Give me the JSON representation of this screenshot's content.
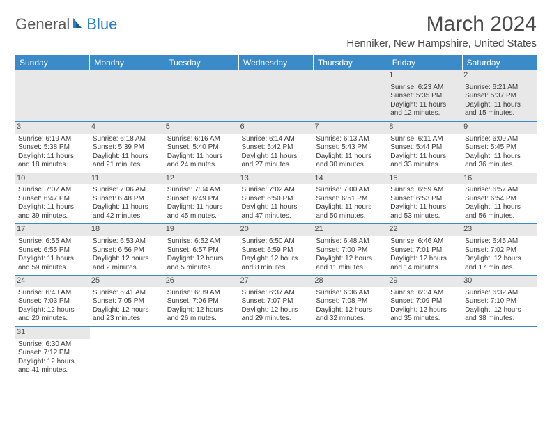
{
  "logo": {
    "part1": "General",
    "part2": "Blue"
  },
  "title": "March 2024",
  "location": "Henniker, New Hampshire, United States",
  "colors": {
    "header_bg": "#3b8bc9",
    "header_text": "#ffffff",
    "daynum_bg": "#e8e8e8",
    "text": "#3a3a3a",
    "border": "#3b8bc9"
  },
  "day_headers": [
    "Sunday",
    "Monday",
    "Tuesday",
    "Wednesday",
    "Thursday",
    "Friday",
    "Saturday"
  ],
  "weeks": [
    [
      {
        "n": "",
        "lines": []
      },
      {
        "n": "",
        "lines": []
      },
      {
        "n": "",
        "lines": []
      },
      {
        "n": "",
        "lines": []
      },
      {
        "n": "",
        "lines": []
      },
      {
        "n": "1",
        "lines": [
          "Sunrise: 6:23 AM",
          "Sunset: 5:35 PM",
          "Daylight: 11 hours",
          "and 12 minutes."
        ]
      },
      {
        "n": "2",
        "lines": [
          "Sunrise: 6:21 AM",
          "Sunset: 5:37 PM",
          "Daylight: 11 hours",
          "and 15 minutes."
        ]
      }
    ],
    [
      {
        "n": "3",
        "lines": [
          "Sunrise: 6:19 AM",
          "Sunset: 5:38 PM",
          "Daylight: 11 hours",
          "and 18 minutes."
        ]
      },
      {
        "n": "4",
        "lines": [
          "Sunrise: 6:18 AM",
          "Sunset: 5:39 PM",
          "Daylight: 11 hours",
          "and 21 minutes."
        ]
      },
      {
        "n": "5",
        "lines": [
          "Sunrise: 6:16 AM",
          "Sunset: 5:40 PM",
          "Daylight: 11 hours",
          "and 24 minutes."
        ]
      },
      {
        "n": "6",
        "lines": [
          "Sunrise: 6:14 AM",
          "Sunset: 5:42 PM",
          "Daylight: 11 hours",
          "and 27 minutes."
        ]
      },
      {
        "n": "7",
        "lines": [
          "Sunrise: 6:13 AM",
          "Sunset: 5:43 PM",
          "Daylight: 11 hours",
          "and 30 minutes."
        ]
      },
      {
        "n": "8",
        "lines": [
          "Sunrise: 6:11 AM",
          "Sunset: 5:44 PM",
          "Daylight: 11 hours",
          "and 33 minutes."
        ]
      },
      {
        "n": "9",
        "lines": [
          "Sunrise: 6:09 AM",
          "Sunset: 5:45 PM",
          "Daylight: 11 hours",
          "and 36 minutes."
        ]
      }
    ],
    [
      {
        "n": "10",
        "lines": [
          "Sunrise: 7:07 AM",
          "Sunset: 6:47 PM",
          "Daylight: 11 hours",
          "and 39 minutes."
        ]
      },
      {
        "n": "11",
        "lines": [
          "Sunrise: 7:06 AM",
          "Sunset: 6:48 PM",
          "Daylight: 11 hours",
          "and 42 minutes."
        ]
      },
      {
        "n": "12",
        "lines": [
          "Sunrise: 7:04 AM",
          "Sunset: 6:49 PM",
          "Daylight: 11 hours",
          "and 45 minutes."
        ]
      },
      {
        "n": "13",
        "lines": [
          "Sunrise: 7:02 AM",
          "Sunset: 6:50 PM",
          "Daylight: 11 hours",
          "and 47 minutes."
        ]
      },
      {
        "n": "14",
        "lines": [
          "Sunrise: 7:00 AM",
          "Sunset: 6:51 PM",
          "Daylight: 11 hours",
          "and 50 minutes."
        ]
      },
      {
        "n": "15",
        "lines": [
          "Sunrise: 6:59 AM",
          "Sunset: 6:53 PM",
          "Daylight: 11 hours",
          "and 53 minutes."
        ]
      },
      {
        "n": "16",
        "lines": [
          "Sunrise: 6:57 AM",
          "Sunset: 6:54 PM",
          "Daylight: 11 hours",
          "and 56 minutes."
        ]
      }
    ],
    [
      {
        "n": "17",
        "lines": [
          "Sunrise: 6:55 AM",
          "Sunset: 6:55 PM",
          "Daylight: 11 hours",
          "and 59 minutes."
        ]
      },
      {
        "n": "18",
        "lines": [
          "Sunrise: 6:53 AM",
          "Sunset: 6:56 PM",
          "Daylight: 12 hours",
          "and 2 minutes."
        ]
      },
      {
        "n": "19",
        "lines": [
          "Sunrise: 6:52 AM",
          "Sunset: 6:57 PM",
          "Daylight: 12 hours",
          "and 5 minutes."
        ]
      },
      {
        "n": "20",
        "lines": [
          "Sunrise: 6:50 AM",
          "Sunset: 6:59 PM",
          "Daylight: 12 hours",
          "and 8 minutes."
        ]
      },
      {
        "n": "21",
        "lines": [
          "Sunrise: 6:48 AM",
          "Sunset: 7:00 PM",
          "Daylight: 12 hours",
          "and 11 minutes."
        ]
      },
      {
        "n": "22",
        "lines": [
          "Sunrise: 6:46 AM",
          "Sunset: 7:01 PM",
          "Daylight: 12 hours",
          "and 14 minutes."
        ]
      },
      {
        "n": "23",
        "lines": [
          "Sunrise: 6:45 AM",
          "Sunset: 7:02 PM",
          "Daylight: 12 hours",
          "and 17 minutes."
        ]
      }
    ],
    [
      {
        "n": "24",
        "lines": [
          "Sunrise: 6:43 AM",
          "Sunset: 7:03 PM",
          "Daylight: 12 hours",
          "and 20 minutes."
        ]
      },
      {
        "n": "25",
        "lines": [
          "Sunrise: 6:41 AM",
          "Sunset: 7:05 PM",
          "Daylight: 12 hours",
          "and 23 minutes."
        ]
      },
      {
        "n": "26",
        "lines": [
          "Sunrise: 6:39 AM",
          "Sunset: 7:06 PM",
          "Daylight: 12 hours",
          "and 26 minutes."
        ]
      },
      {
        "n": "27",
        "lines": [
          "Sunrise: 6:37 AM",
          "Sunset: 7:07 PM",
          "Daylight: 12 hours",
          "and 29 minutes."
        ]
      },
      {
        "n": "28",
        "lines": [
          "Sunrise: 6:36 AM",
          "Sunset: 7:08 PM",
          "Daylight: 12 hours",
          "and 32 minutes."
        ]
      },
      {
        "n": "29",
        "lines": [
          "Sunrise: 6:34 AM",
          "Sunset: 7:09 PM",
          "Daylight: 12 hours",
          "and 35 minutes."
        ]
      },
      {
        "n": "30",
        "lines": [
          "Sunrise: 6:32 AM",
          "Sunset: 7:10 PM",
          "Daylight: 12 hours",
          "and 38 minutes."
        ]
      }
    ],
    [
      {
        "n": "31",
        "lines": [
          "Sunrise: 6:30 AM",
          "Sunset: 7:12 PM",
          "Daylight: 12 hours",
          "and 41 minutes."
        ]
      },
      {
        "n": "",
        "lines": []
      },
      {
        "n": "",
        "lines": []
      },
      {
        "n": "",
        "lines": []
      },
      {
        "n": "",
        "lines": []
      },
      {
        "n": "",
        "lines": []
      },
      {
        "n": "",
        "lines": []
      }
    ]
  ]
}
